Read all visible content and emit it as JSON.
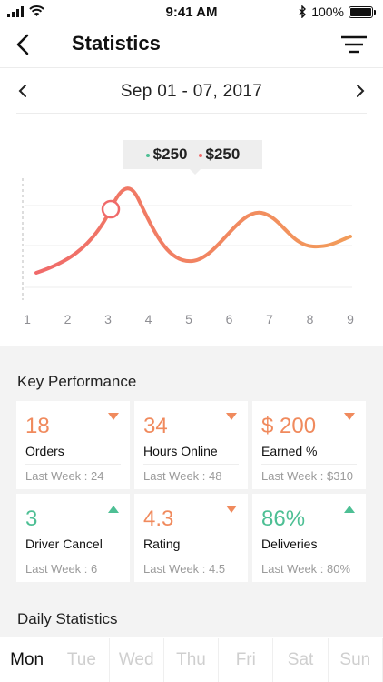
{
  "status_bar": {
    "time": "9:41 AM",
    "battery": "100%"
  },
  "header": {
    "title": "Statistics"
  },
  "date_range": {
    "label": "Sep 01 - 07,  2017"
  },
  "chart_data": {
    "type": "line",
    "x": [
      1,
      2,
      3,
      4,
      5,
      6,
      7,
      8,
      9
    ],
    "tick_labels": [
      "1",
      "2",
      "3",
      "4",
      "5",
      "6",
      "7",
      "8",
      "9"
    ],
    "tooltip": {
      "values": [
        "$250",
        "$250"
      ],
      "colors": [
        "#4dbf94",
        "#f06a6a"
      ]
    },
    "line_colors": [
      "#f07060",
      "#f29c5a"
    ]
  },
  "key_performance": {
    "title": "Key Performance",
    "cards": [
      {
        "value": "18",
        "label": "Orders",
        "sub": "Last Week : 24",
        "trend": "down"
      },
      {
        "value": "34",
        "label": "Hours Online",
        "sub": "Last Week : 48",
        "trend": "down"
      },
      {
        "value": "$ 200",
        "label": "Earned %",
        "sub": "Last Week : $310",
        "trend": "down"
      },
      {
        "value": "3",
        "label": "Driver Cancel",
        "sub": "Last Week : 6",
        "trend": "up"
      },
      {
        "value": "4.3",
        "label": "Rating",
        "sub": "Last Week : 4.5",
        "trend": "down"
      },
      {
        "value": "86%",
        "label": "Deliveries",
        "sub": "Last Week : 80%",
        "trend": "up"
      }
    ]
  },
  "daily_statistics": {
    "title": "Daily Statistics",
    "days": [
      "Mon",
      "Tue",
      "Wed",
      "Thu",
      "Fri",
      "Sat",
      "Sun"
    ],
    "active": "Mon"
  },
  "colors": {
    "down": "#f08a5d",
    "up": "#4dbf94"
  }
}
